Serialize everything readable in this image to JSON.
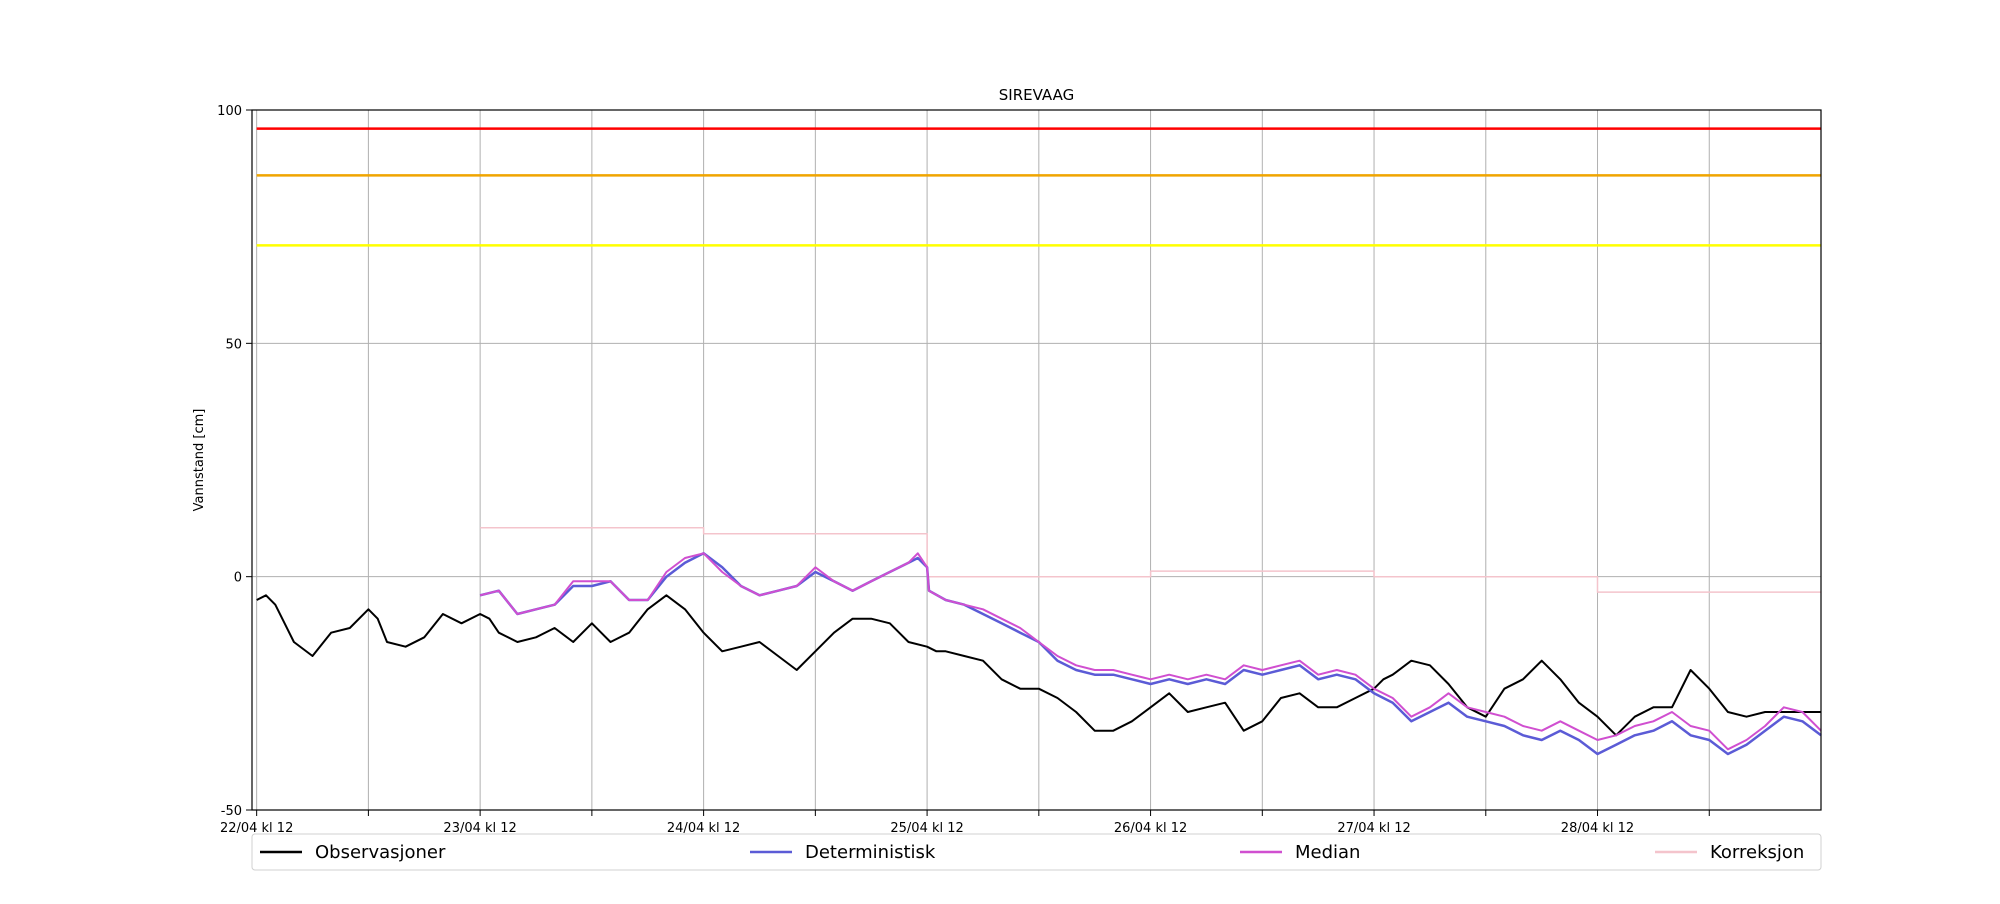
{
  "chart_data": {
    "type": "line",
    "title": "SIREVAAG",
    "ylabel": "Vannstand [cm]",
    "xlabel": "",
    "ylim": [
      -50,
      100
    ],
    "xlim_hours": [
      -0.5,
      168.0
    ],
    "x_unit": "hours since 22/04 kl 12",
    "y_ticks": [
      -50,
      0,
      50,
      100
    ],
    "x_tick_labels": [
      {
        "hour": 0,
        "label": "22/04 kl 12"
      },
      {
        "hour": 24,
        "label": "23/04 kl 12"
      },
      {
        "hour": 48,
        "label": "24/04 kl 12"
      },
      {
        "hour": 72,
        "label": "25/04 kl 12"
      },
      {
        "hour": 96,
        "label": "26/04 kl 12"
      },
      {
        "hour": 120,
        "label": "27/04 kl 12"
      },
      {
        "hour": 144,
        "label": "28/04 kl 12"
      }
    ],
    "x_minor_ticks": [
      12,
      36,
      60,
      84,
      108,
      132,
      156
    ],
    "grid": true,
    "legend_position": "bottom",
    "thresholds": [
      {
        "value": 96,
        "color": "#ff0000"
      },
      {
        "value": 86,
        "color": "#f0a500"
      },
      {
        "value": 71,
        "color": "#ffff00"
      }
    ],
    "series": [
      {
        "name": "Observasjoner",
        "color": "#000000",
        "x": [
          0,
          1,
          2,
          3,
          4,
          6,
          8,
          10,
          12,
          13,
          14,
          16,
          18,
          20,
          22,
          24,
          25,
          26,
          28,
          30,
          32,
          34,
          36,
          37,
          38,
          40,
          42,
          44,
          46,
          48,
          50,
          52,
          54,
          56,
          58,
          60,
          62,
          64,
          66,
          68,
          70,
          72,
          73,
          74,
          76,
          78,
          80,
          82,
          84,
          86,
          88,
          90,
          92,
          94,
          96,
          98,
          100,
          102,
          104,
          106,
          108,
          110,
          112,
          114,
          116,
          118,
          120,
          121,
          122,
          124,
          126,
          128,
          130,
          132,
          134,
          136,
          138,
          140,
          142,
          144,
          146,
          148,
          150,
          152,
          154,
          156,
          158,
          160,
          162,
          164,
          166,
          168
        ],
        "y": [
          -5,
          -4,
          -6,
          -10,
          -14,
          -17,
          -12,
          -11,
          -7,
          -9,
          -14,
          -15,
          -13,
          -8,
          -10,
          -8,
          -9,
          -12,
          -14,
          -13,
          -11,
          -14,
          -10,
          -12,
          -14,
          -12,
          -7,
          -4,
          -7,
          -12,
          -16,
          -15,
          -14,
          -17,
          -20,
          -16,
          -12,
          -9,
          -9,
          -10,
          -14,
          -15,
          -16,
          -16,
          -17,
          -18,
          -22,
          -24,
          -24,
          -26,
          -29,
          -33,
          -33,
          -31,
          -28,
          -25,
          -29,
          -28,
          -27,
          -33,
          -31,
          -26,
          -25,
          -28,
          -28,
          -26,
          -24,
          -22,
          -21,
          -18,
          -19,
          -23,
          -28,
          -30,
          -24,
          -22,
          -18,
          -22,
          -27,
          -30,
          -34,
          -30,
          -28,
          -28,
          -20,
          -24,
          -29,
          -30,
          -29,
          -29,
          -29,
          -29
        ]
      },
      {
        "name": "Deterministisk",
        "color": "#5b5bd6",
        "x": [
          24,
          26,
          28,
          30,
          32,
          34,
          36,
          38,
          40,
          42,
          44,
          46,
          48,
          50,
          52,
          54,
          56,
          58,
          60,
          62,
          64,
          66,
          68,
          70,
          71,
          72,
          72.2,
          74,
          76,
          78,
          80,
          82,
          84,
          86,
          88,
          90,
          92,
          94,
          96,
          98,
          100,
          102,
          104,
          106,
          108,
          110,
          112,
          114,
          116,
          118,
          120,
          122,
          124,
          126,
          128,
          130,
          132,
          134,
          136,
          138,
          140,
          142,
          144,
          146,
          148,
          150,
          152,
          154,
          156,
          158,
          160,
          162,
          164,
          166,
          168
        ],
        "y": [
          -4,
          -3,
          -8,
          -7,
          -6,
          -2,
          -2,
          -1,
          -5,
          -5,
          0,
          3,
          5,
          2,
          -2,
          -4,
          -3,
          -2,
          1,
          -1,
          -3,
          -1,
          1,
          3,
          4,
          2,
          -3,
          -5,
          -6,
          -8,
          -10,
          -12,
          -14,
          -18,
          -20,
          -21,
          -21,
          -22,
          -23,
          -22,
          -23,
          -22,
          -23,
          -20,
          -21,
          -20,
          -19,
          -22,
          -21,
          -22,
          -25,
          -27,
          -31,
          -29,
          -27,
          -30,
          -31,
          -32,
          -34,
          -35,
          -33,
          -35,
          -38,
          -36,
          -34,
          -33,
          -31,
          -34,
          -35,
          -38,
          -36,
          -33,
          -30,
          -31,
          -34
        ]
      },
      {
        "name": "Median",
        "color": "#d04fd0",
        "x": [
          24,
          26,
          28,
          30,
          32,
          34,
          36,
          38,
          40,
          42,
          44,
          46,
          48,
          50,
          52,
          54,
          56,
          58,
          60,
          62,
          64,
          66,
          68,
          70,
          71,
          72,
          72.2,
          74,
          76,
          78,
          80,
          82,
          84,
          86,
          88,
          90,
          92,
          94,
          96,
          98,
          100,
          102,
          104,
          106,
          108,
          110,
          112,
          114,
          116,
          118,
          120,
          122,
          124,
          126,
          128,
          130,
          132,
          134,
          136,
          138,
          140,
          142,
          144,
          146,
          148,
          150,
          152,
          154,
          156,
          158,
          160,
          162,
          164,
          166,
          168
        ],
        "y": [
          -4,
          -3,
          -8,
          -7,
          -6,
          -1,
          -1,
          -1,
          -5,
          -5,
          1,
          4,
          5,
          1,
          -2,
          -4,
          -3,
          -2,
          2,
          -1,
          -3,
          -1,
          1,
          3,
          5,
          2,
          -3,
          -5,
          -6,
          -7,
          -9,
          -11,
          -14,
          -17,
          -19,
          -20,
          -20,
          -21,
          -22,
          -21,
          -22,
          -21,
          -22,
          -19,
          -20,
          -19,
          -18,
          -21,
          -20,
          -21,
          -24,
          -26,
          -30,
          -28,
          -25,
          -28,
          -29,
          -30,
          -32,
          -33,
          -31,
          -33,
          -35,
          -34,
          -32,
          -31,
          -29,
          -32,
          -33,
          -37,
          -35,
          -32,
          -28,
          -29,
          -33
        ]
      },
      {
        "name": "Korreksjon",
        "color": "#f4c4cc",
        "x": [
          24,
          48,
          48,
          72,
          72,
          96,
          96,
          120,
          120,
          144,
          144,
          168
        ],
        "y": [
          10.5,
          10.5,
          9.2,
          9.2,
          0,
          0,
          1.2,
          1.2,
          0,
          0,
          -3.3,
          -3.3
        ]
      }
    ]
  }
}
